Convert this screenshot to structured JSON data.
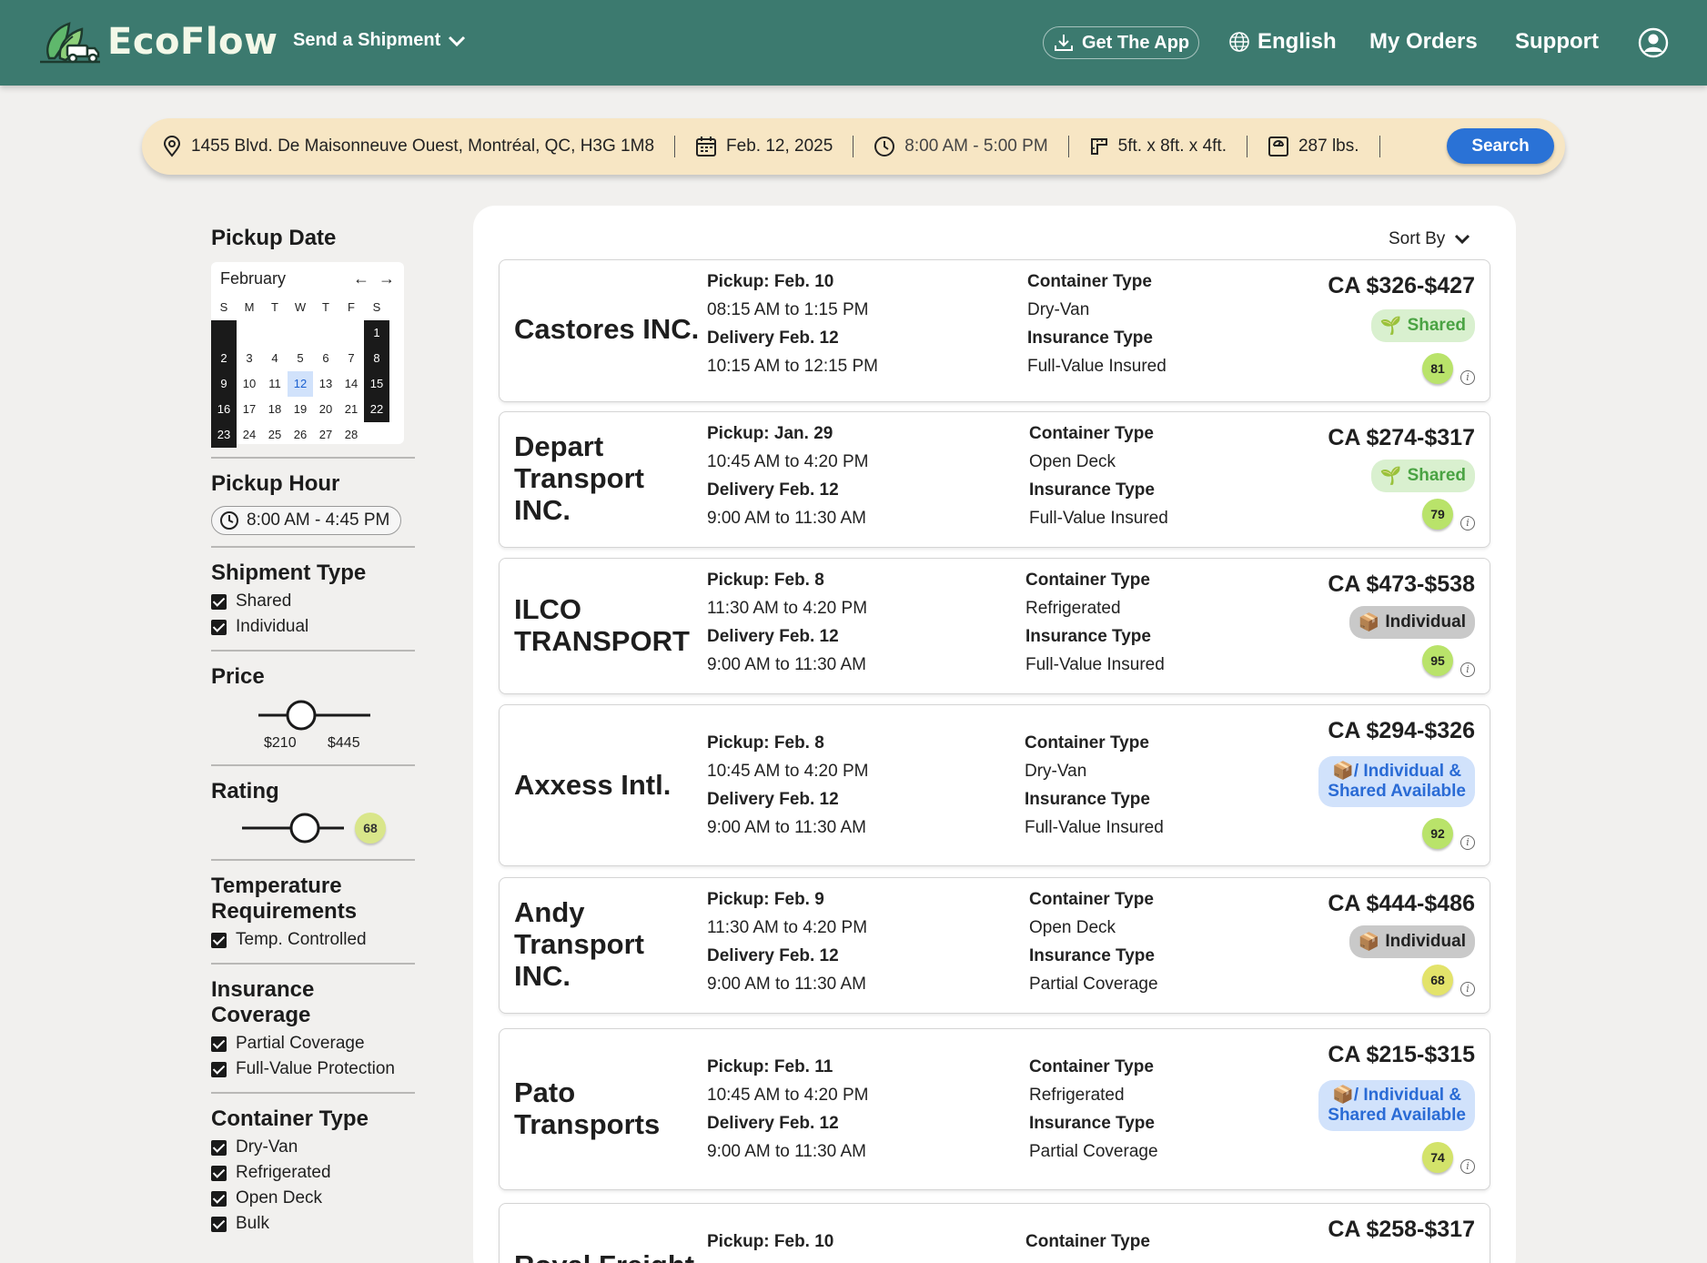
{
  "header": {
    "brand": "EcoFlow",
    "send_label": "Send a Shipment",
    "get_app_label": "Get The App",
    "language_label": "English",
    "orders_label": "My Orders",
    "support_label": "Support"
  },
  "search": {
    "address": "1455 Blvd. De Maisonneuve Ouest, Montréal, QC, H3G 1M8",
    "date": "Feb. 12, 2025",
    "time": "8:00 AM - 5:00 PM",
    "dimensions": "5ft. x 8ft. x 4ft.",
    "weight": "287 lbs.",
    "search_label": "Search"
  },
  "filters": {
    "pickup_date": {
      "title": "Pickup Date",
      "month": "February",
      "dow": [
        "S",
        "M",
        "T",
        "W",
        "T",
        "F",
        "S"
      ],
      "weeks": [
        [
          "",
          "",
          "",
          "",
          "",
          "",
          "1"
        ],
        [
          "2",
          "3",
          "4",
          "5",
          "6",
          "7",
          "8"
        ],
        [
          "9",
          "10",
          "11",
          "12",
          "13",
          "14",
          "15"
        ],
        [
          "16",
          "17",
          "18",
          "19",
          "20",
          "21",
          "22"
        ],
        [
          "23",
          "24",
          "25",
          "26",
          "27",
          "28",
          ""
        ]
      ],
      "selected": "12"
    },
    "pickup_hour": {
      "title": "Pickup Hour",
      "value": "8:00 AM - 4:45 PM"
    },
    "shipment_type": {
      "title": "Shipment Type",
      "options": [
        "Shared",
        "Individual"
      ]
    },
    "price": {
      "title": "Price",
      "min_label": "$210",
      "max_label": "$445"
    },
    "rating": {
      "title": "Rating",
      "value": "68"
    },
    "temperature": {
      "title": "Temperature Requirements",
      "options": [
        "Temp. Controlled"
      ]
    },
    "insurance": {
      "title": "Insurance Coverage",
      "options": [
        "Partial Coverage",
        "Full-Value Protection"
      ]
    },
    "container": {
      "title": "Container Type",
      "options": [
        "Dry-Van",
        "Refrigerated",
        "Open Deck",
        "Bulk"
      ]
    }
  },
  "results": {
    "sort_label": "Sort By",
    "cards": [
      {
        "company": "Castores INC.",
        "pickup": "Pickup: Feb. 10",
        "pickup_time": "08:15 AM to 1:15 PM",
        "delivery": "Delivery Feb. 12",
        "delivery_time": "10:15 AM to 12:15 PM",
        "container_label": "Container Type",
        "container": "Dry-Van",
        "insurance_label": "Insurance Type",
        "insurance": "Full-Value Insured",
        "price": "CA $326-$427",
        "tag": "Shared",
        "tag_type": "shared",
        "score": "81"
      },
      {
        "company": "Depart Transport INC.",
        "pickup": "Pickup: Jan. 29",
        "pickup_time": "10:45 AM to 4:20 PM",
        "delivery": "Delivery Feb. 12",
        "delivery_time": "9:00 AM to 11:30 AM",
        "container_label": "Container Type",
        "container": "Open Deck",
        "insurance_label": "Insurance Type",
        "insurance": "Full-Value Insured",
        "price": "CA $274-$317",
        "tag": "Shared",
        "tag_type": "shared",
        "score": "79"
      },
      {
        "company": "ILCO TRANSPORT",
        "pickup": "Pickup: Feb. 8",
        "pickup_time": "11:30 AM to 4:20 PM",
        "delivery": "Delivery Feb. 12",
        "delivery_time": "9:00 AM to 11:30 AM",
        "container_label": "Container Type",
        "container": "Refrigerated",
        "insurance_label": "Insurance Type",
        "insurance": "Full-Value Insured",
        "price": "CA $473-$538",
        "tag": "Individual",
        "tag_type": "individual",
        "score": "95"
      },
      {
        "company": "Axxess Intl.",
        "pickup": "Pickup: Feb. 8",
        "pickup_time": "10:45 AM to 4:20 PM",
        "delivery": "Delivery Feb. 12",
        "delivery_time": "9:00 AM to 11:30 AM",
        "container_label": "Container Type",
        "container": "Dry-Van",
        "insurance_label": "Insurance Type",
        "insurance": "Full-Value Insured",
        "price": "CA $294-$326",
        "tag_line1": "Individual &",
        "tag_line2": "Shared Available",
        "tag_type": "both",
        "score": "92"
      },
      {
        "company": "Andy Transport INC.",
        "pickup": "Pickup: Feb. 9",
        "pickup_time": "11:30 AM to 4:20 PM",
        "delivery": "Delivery Feb. 12",
        "delivery_time": "9:00 AM to 11:30 AM",
        "container_label": "Container Type",
        "container": "Open Deck",
        "insurance_label": "Insurance Type",
        "insurance": "Partial Coverage",
        "price": "CA $444-$486",
        "tag": "Individual",
        "tag_type": "individual",
        "score": "68"
      },
      {
        "company": "Pato Transports",
        "pickup": "Pickup: Feb. 11",
        "pickup_time": "10:45 AM to 4:20 PM",
        "delivery": "Delivery Feb. 12",
        "delivery_time": "9:00 AM to 11:30 AM",
        "container_label": "Container Type",
        "container": "Refrigerated",
        "insurance_label": "Insurance Type",
        "insurance": "Partial Coverage",
        "price": "CA $215-$315",
        "tag_line1": "Individual &",
        "tag_line2": "Shared Available",
        "tag_type": "both",
        "score": "74"
      },
      {
        "company": "Royal Freight",
        "pickup": "Pickup: Feb. 10",
        "container_label": "Container Type",
        "price": "CA $258-$317"
      }
    ]
  },
  "colors": {
    "header_bg": "#3c7a6f",
    "search_bg": "#f7e6c4",
    "search_button": "#2a72d6",
    "score_high": "#b9e36a",
    "score_mid": "#e3e36a"
  }
}
